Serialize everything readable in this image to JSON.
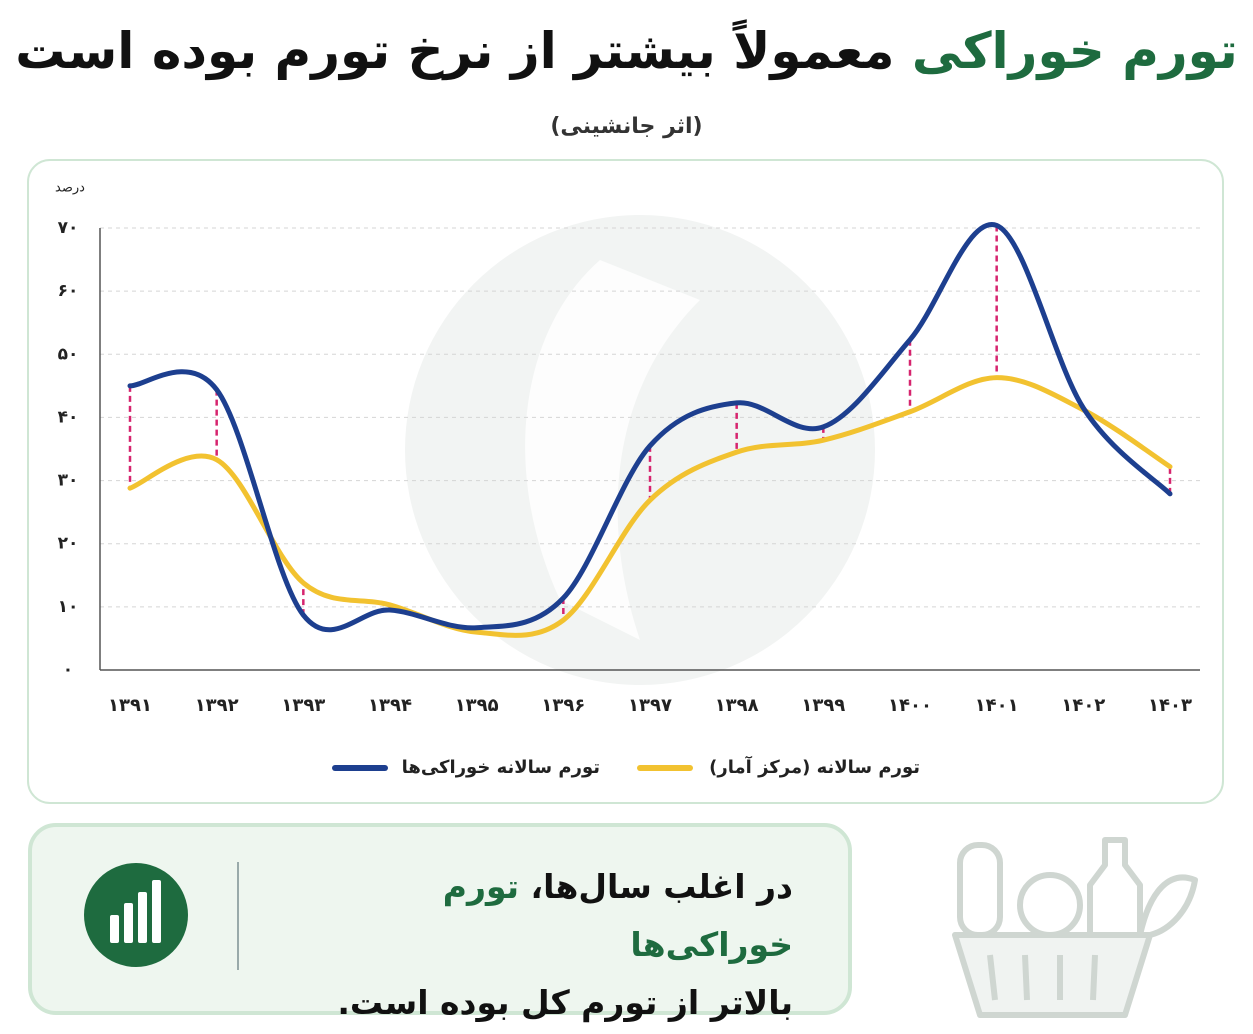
{
  "chart_data": {
    "type": "line",
    "title_parts": [
      "تورم خوراکی",
      "معمولاً بیشتر از نرخ تورم بوده است"
    ],
    "subtitle": "(اثر جانشینی)",
    "y_label": "درصد",
    "categories": [
      "۱۳۹۱",
      "۱۳۹۲",
      "۱۳۹۳",
      "۱۳۹۴",
      "۱۳۹۵",
      "۱۳۹۶",
      "۱۳۹۷",
      "۱۳۹۸",
      "۱۳۹۹",
      "۱۴۰۰",
      "۱۴۰۱",
      "۱۴۰۲",
      "۱۴۰۳"
    ],
    "series": [
      {
        "name": "تورم سالانه خوراکی‌ها",
        "color": "#1d3f8f",
        "values": [
          45.0,
          44.4,
          8.7,
          9.5,
          6.7,
          11.4,
          35.5,
          42.3,
          38.5,
          52.3,
          70.4,
          41.5,
          27.9
        ]
      },
      {
        "name": "تورم سالانه (مرکز آمار)",
        "color": "#f2c230",
        "values": [
          28.8,
          33.3,
          13.8,
          10.3,
          6.0,
          7.9,
          26.9,
          34.5,
          36.4,
          40.9,
          46.3,
          41.2,
          32.2
        ]
      }
    ],
    "gap_color": "#d6246e",
    "ylim": [
      0,
      70
    ],
    "yticks": [
      {
        "value": 0,
        "label": "۰"
      },
      {
        "value": 10,
        "label": "۱۰"
      },
      {
        "value": 20,
        "label": "۲۰"
      },
      {
        "value": 30,
        "label": "۳۰"
      },
      {
        "value": 40,
        "label": "۴۰"
      },
      {
        "value": 50,
        "label": "۵۰"
      },
      {
        "value": 60,
        "label": "۶۰"
      },
      {
        "value": 70,
        "label": "۷۰"
      }
    ],
    "grid": true
  },
  "note": {
    "parts": [
      "در اغلب سال‌ها، ",
      "تورم خوراکی‌ها",
      "بالاتر از تورم کل بوده است."
    ]
  }
}
